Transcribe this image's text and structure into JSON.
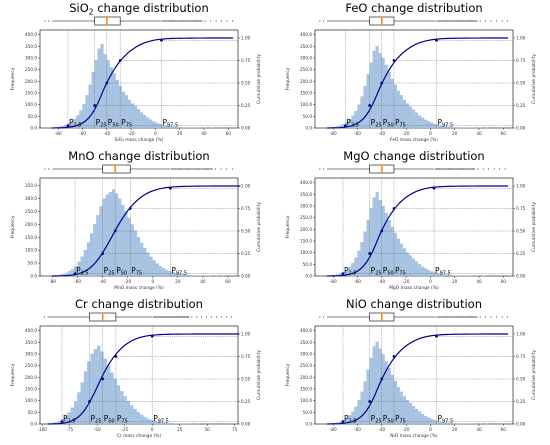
{
  "chart_data": [
    {
      "type": "histogram+cdf+boxplot",
      "title": "SiO2 change distribution",
      "title_main": "SiO",
      "title_sub": "2",
      "title_rest": " change distribution",
      "xlabel": "SiO₂ mass change (%)",
      "ylabel_left": "Frequency",
      "ylabel_right": "Cumulative probability",
      "xlim": [
        -95,
        68
      ],
      "ylim": [
        0,
        420
      ],
      "xticks": [
        -80,
        -60,
        -40,
        -20,
        0,
        20,
        40,
        60
      ],
      "yticks": [
        "0.0",
        "50.0",
        "100.0",
        "150.0",
        "200.0",
        "250.0",
        "300.0",
        "350.0",
        "400.0"
      ],
      "y2ticks": [
        "0.00",
        "0.25",
        "0.50",
        "0.75",
        "1.00"
      ],
      "percentiles": {
        "p2.5": -72,
        "p25": -50,
        "p50": -40,
        "p75": -29,
        "p97.5": 5
      },
      "percentile_labels": {
        "p2.5": "2.5",
        "p25": "25",
        "p50": "50",
        "p75": "75",
        "p97.5": "97.5"
      },
      "bins": {
        "start": -85,
        "width": 2.5,
        "counts": [
          2,
          3,
          5,
          8,
          12,
          18,
          26,
          38,
          55,
          75,
          102,
          140,
          185,
          240,
          290,
          340,
          360,
          315,
          290,
          260,
          235,
          205,
          180,
          155,
          140,
          120,
          105,
          95,
          80,
          66,
          55,
          45,
          36,
          28,
          22,
          17,
          13,
          10,
          8,
          6,
          4,
          3,
          3,
          2,
          2,
          1,
          1,
          1,
          1,
          0,
          1,
          0,
          1,
          0,
          0
        ]
      },
      "box": {
        "q1": -50,
        "median": -40,
        "q3": -29,
        "whisker_low": -85,
        "whisker_high": 5
      }
    },
    {
      "type": "histogram+cdf+boxplot",
      "title": "FeO change distribution",
      "title_main": "FeO change distribution",
      "title_sub": "",
      "title_rest": "",
      "xlabel": "FeO mass change (%)",
      "ylabel_left": "Frequency",
      "ylabel_right": "Cumulative probability",
      "xlim": [
        -95,
        68
      ],
      "ylim": [
        0,
        420
      ],
      "xticks": [
        -80,
        -60,
        -40,
        -20,
        0,
        20,
        40,
        60
      ],
      "yticks": [
        "0.0",
        "50.0",
        "100.0",
        "150.0",
        "200.0",
        "250.0",
        "300.0",
        "350.0",
        "400.0"
      ],
      "y2ticks": [
        "0.00",
        "0.25",
        "0.50",
        "0.75",
        "1.00"
      ],
      "percentiles": {
        "p2.5": -70,
        "p25": -50,
        "p50": -40,
        "p75": -30,
        "p97.5": 5
      },
      "percentile_labels": {
        "p2.5": "2.5",
        "p25": "25",
        "p50": "50",
        "p75": "75",
        "p97.5": "97.5"
      },
      "bins": {
        "start": -85,
        "width": 2.5,
        "counts": [
          2,
          3,
          4,
          7,
          11,
          17,
          25,
          37,
          52,
          72,
          100,
          135,
          180,
          230,
          280,
          330,
          350,
          320,
          300,
          270,
          240,
          210,
          185,
          160,
          140,
          120,
          105,
          92,
          78,
          65,
          53,
          43,
          35,
          28,
          22,
          17,
          13,
          10,
          8,
          6,
          4,
          3,
          3,
          2,
          2,
          1,
          1,
          1,
          1,
          0,
          1,
          0,
          1,
          0,
          0
        ]
      },
      "box": {
        "q1": -50,
        "median": -40,
        "q3": -30,
        "whisker_low": -85,
        "whisker_high": 5
      }
    },
    {
      "type": "histogram+cdf+boxplot",
      "title": "MnO change distribution",
      "title_main": "MnO change distribution",
      "title_sub": "",
      "title_rest": "",
      "xlabel": "MnO mass change (%)",
      "ylabel_left": "Frequency",
      "ylabel_right": "Cumulative probability",
      "xlim": [
        -90,
        68
      ],
      "ylim": [
        0,
        380
      ],
      "xticks": [
        -80,
        -60,
        -40,
        -20,
        0,
        20,
        40,
        60
      ],
      "yticks": [
        "0.0",
        "50.0",
        "100.0",
        "150.0",
        "200.0",
        "250.0",
        "300.0",
        "350.0"
      ],
      "y2ticks": [
        "0.00",
        "0.25",
        "0.50",
        "0.75",
        "1.00"
      ],
      "percentiles": {
        "p2.5": -62,
        "p25": -40,
        "p50": -30,
        "p75": -18,
        "p97.5": 14
      },
      "percentile_labels": {
        "p2.5": "2.5",
        "p25": "25",
        "p50": "50",
        "p75": "75",
        "p97.5": "97.5"
      },
      "bins": {
        "start": -80,
        "width": 2.5,
        "counts": [
          2,
          3,
          5,
          8,
          12,
          18,
          26,
          38,
          55,
          75,
          100,
          130,
          165,
          200,
          235,
          270,
          300,
          315,
          325,
          335,
          320,
          300,
          275,
          250,
          225,
          200,
          175,
          150,
          128,
          108,
          90,
          74,
          60,
          48,
          38,
          30,
          23,
          18,
          14,
          11,
          8,
          6,
          5,
          4,
          3,
          2,
          2,
          1,
          1,
          1,
          1,
          0,
          1,
          0,
          1,
          0,
          0,
          0,
          0,
          0
        ]
      },
      "box": {
        "q1": -40,
        "median": -30,
        "q3": -18,
        "whisker_low": -80,
        "whisker_high": 14
      }
    },
    {
      "type": "histogram+cdf+boxplot",
      "title": "MgO change distribution",
      "title_main": "MgO change distribution",
      "title_sub": "",
      "title_rest": "",
      "xlabel": "MgO mass change (%)",
      "ylabel_left": "Frequency",
      "ylabel_right": "Cumulative probability",
      "xlim": [
        -95,
        68
      ],
      "ylim": [
        0,
        420
      ],
      "xticks": [
        -80,
        -60,
        -40,
        -20,
        0,
        20,
        40,
        60
      ],
      "yticks": [
        "0.0",
        "50.0",
        "100.0",
        "150.0",
        "200.0",
        "250.0",
        "300.0",
        "350.0",
        "400.0"
      ],
      "y2ticks": [
        "0.00",
        "0.25",
        "0.50",
        "0.75",
        "1.00"
      ],
      "percentiles": {
        "p2.5": -72,
        "p25": -50,
        "p50": -40,
        "p75": -30,
        "p97.5": 3
      },
      "percentile_labels": {
        "p2.5": "2.5",
        "p25": "25",
        "p50": "50",
        "p75": "75",
        "p97.5": "97.5"
      },
      "bins": {
        "start": -85,
        "width": 2.5,
        "counts": [
          2,
          3,
          4,
          7,
          11,
          17,
          25,
          38,
          55,
          78,
          108,
          145,
          190,
          240,
          290,
          335,
          360,
          325,
          300,
          270,
          240,
          210,
          185,
          160,
          138,
          118,
          100,
          88,
          74,
          62,
          50,
          40,
          32,
          25,
          19,
          15,
          11,
          8,
          6,
          5,
          4,
          3,
          2,
          2,
          1,
          1,
          1,
          1,
          0,
          1,
          0,
          1,
          0,
          0,
          0
        ]
      },
      "box": {
        "q1": -50,
        "median": -40,
        "q3": -30,
        "whisker_low": -85,
        "whisker_high": 3
      }
    },
    {
      "type": "histogram+cdf+boxplot",
      "title": "Cr change distribution",
      "title_main": "Cr change distribution",
      "title_sub": "",
      "title_rest": "",
      "xlabel": "Cr mass change (%)",
      "ylabel_left": "Frequency",
      "ylabel_right": "Cumulative probability",
      "xlim": [
        -102,
        78
      ],
      "ylim": [
        0,
        420
      ],
      "xticks": [
        -100,
        -75,
        -50,
        -25,
        0,
        25,
        50,
        75
      ],
      "yticks": [
        "0.0",
        "50.0",
        "100.0",
        "150.0",
        "200.0",
        "250.0",
        "300.0",
        "350.0",
        "400.0"
      ],
      "y2ticks": [
        "0.00",
        "0.25",
        "0.50",
        "0.75",
        "1.00"
      ],
      "percentiles": {
        "p2.5": -82,
        "p25": -57,
        "p50": -45,
        "p75": -33,
        "p97.5": 0
      },
      "percentile_labels": {
        "p2.5": "2.5",
        "p25": "25",
        "p50": "50",
        "p75": "75",
        "p97.5": "97.5"
      },
      "bins": {
        "start": -95,
        "width": 3,
        "counts": [
          2,
          4,
          7,
          12,
          20,
          32,
          48,
          70,
          98,
          135,
          178,
          225,
          268,
          300,
          320,
          335,
          310,
          280,
          250,
          220,
          192,
          165,
          140,
          118,
          98,
          80,
          64,
          50,
          39,
          30,
          23,
          17,
          13,
          10,
          7,
          5,
          4,
          3,
          2,
          2,
          1,
          1,
          1,
          1,
          0,
          1,
          0,
          0,
          0,
          0,
          0,
          0,
          0,
          0,
          0,
          0,
          0,
          0
        ]
      },
      "box": {
        "q1": -57,
        "median": -45,
        "q3": -33,
        "whisker_low": -95,
        "whisker_high": 0
      }
    },
    {
      "type": "histogram+cdf+boxplot",
      "title": "NiO change distribution",
      "title_main": "NiO change distribution",
      "title_sub": "",
      "title_rest": "",
      "xlabel": "NiO mass change (%)",
      "ylabel_left": "Frequency",
      "ylabel_right": "Cumulative probability",
      "xlim": [
        -95,
        68
      ],
      "ylim": [
        0,
        420
      ],
      "xticks": [
        -80,
        -60,
        -40,
        -20,
        0,
        20,
        40,
        60
      ],
      "yticks": [
        "0.0",
        "50.0",
        "100.0",
        "150.0",
        "200.0",
        "250.0",
        "300.0",
        "350.0",
        "400.0"
      ],
      "y2ticks": [
        "0.00",
        "0.25",
        "0.50",
        "0.75",
        "1.00"
      ],
      "percentiles": {
        "p2.5": -72,
        "p25": -50,
        "p50": -40,
        "p75": -30,
        "p97.5": 5
      },
      "percentile_labels": {
        "p2.5": "2.5",
        "p25": "25",
        "p50": "50",
        "p75": "75",
        "p97.5": "97.5"
      },
      "bins": {
        "start": -85,
        "width": 2.5,
        "counts": [
          2,
          3,
          4,
          7,
          11,
          17,
          25,
          37,
          53,
          74,
          102,
          138,
          182,
          232,
          282,
          332,
          352,
          322,
          298,
          268,
          240,
          210,
          184,
          158,
          138,
          118,
          102,
          90,
          76,
          64,
          52,
          42,
          34,
          27,
          21,
          16,
          12,
          9,
          7,
          5,
          4,
          3,
          3,
          2,
          2,
          1,
          1,
          1,
          1,
          0,
          1,
          0,
          1,
          0,
          0
        ]
      },
      "box": {
        "q1": -50,
        "median": -40,
        "q3": -30,
        "whisker_low": -85,
        "whisker_high": 5
      }
    }
  ],
  "colors": {
    "bar": "#a9c4e3",
    "bar_edge": "#7fa6d2",
    "cdf": "#00008b",
    "median": "#ff8c00",
    "guide": "#555555"
  }
}
